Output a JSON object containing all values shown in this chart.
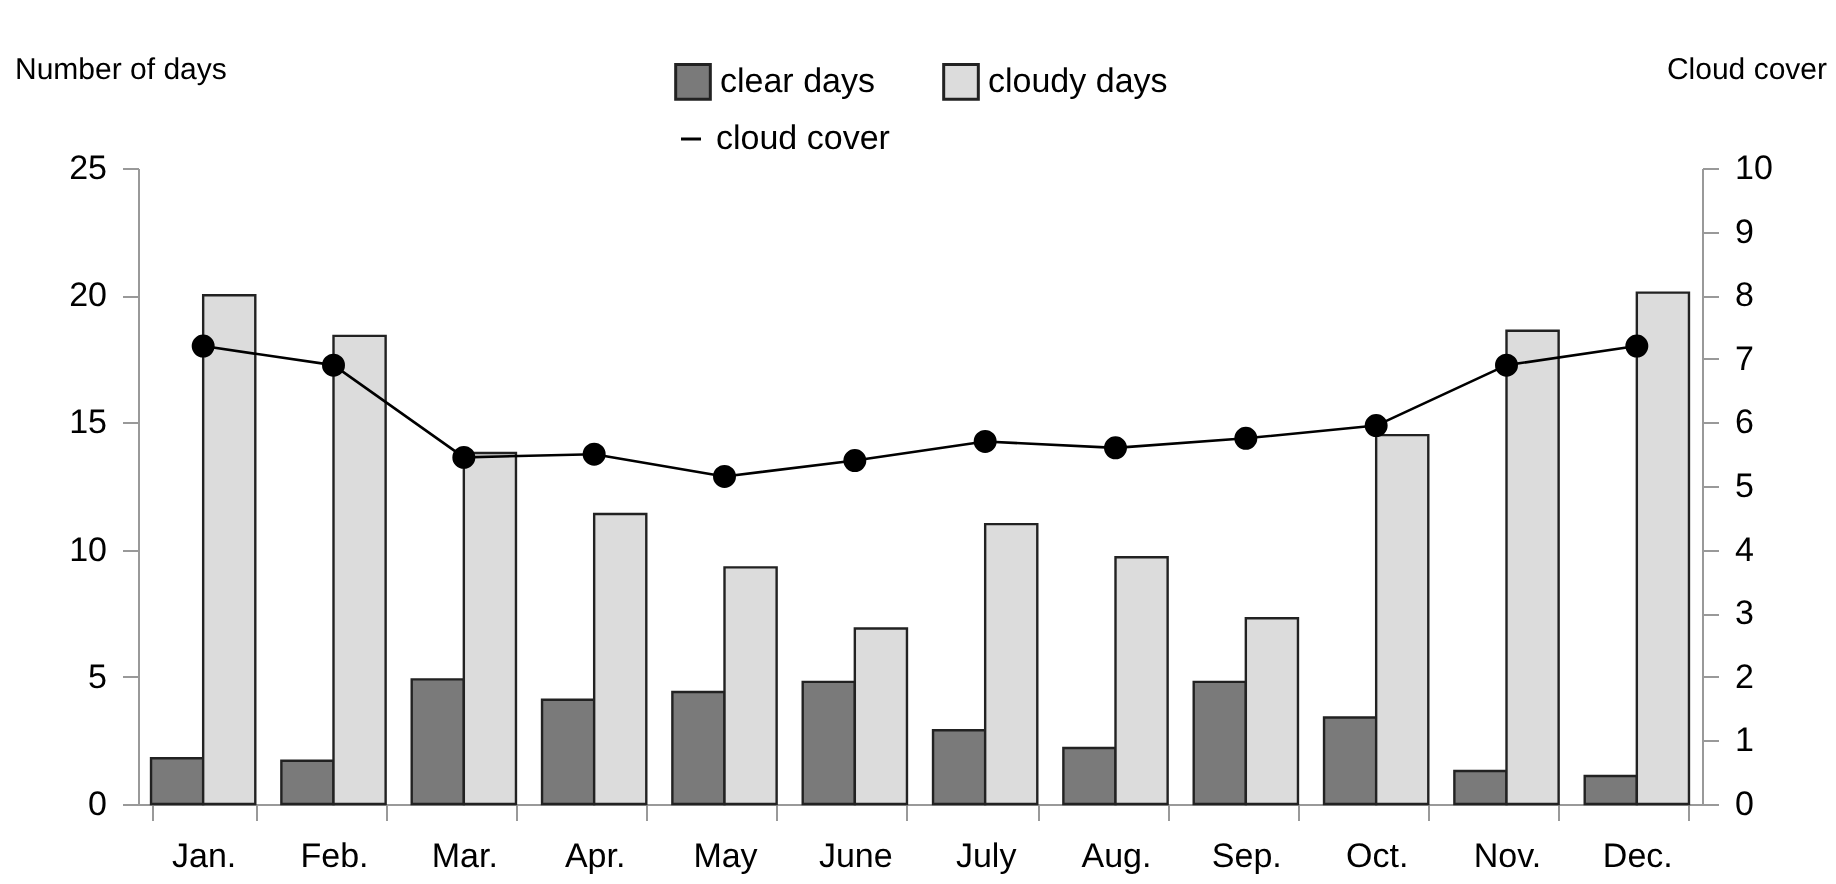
{
  "chart_data": {
    "type": "bar",
    "ylabel": "Number of days",
    "y2label": "Cloud cover",
    "categories": [
      "Jan.",
      "Feb.",
      "Mar.",
      "Apr.",
      "May",
      "June",
      "July",
      "Aug.",
      "Sep.",
      "Oct.",
      "Nov.",
      "Dec."
    ],
    "series": [
      {
        "name": "clear days",
        "color": "#7a7a7a",
        "values": [
          1.8,
          1.7,
          4.9,
          4.1,
          4.4,
          4.8,
          2.9,
          2.2,
          4.8,
          3.4,
          1.3,
          1.1
        ]
      },
      {
        "name": "cloudy days",
        "color": "#dcdcdc",
        "values": [
          20.0,
          18.4,
          13.8,
          11.4,
          9.3,
          6.9,
          11.0,
          9.7,
          7.3,
          14.5,
          18.6,
          20.1
        ]
      },
      {
        "name": "cloud cover",
        "type": "line",
        "axis": "y2",
        "color": "#000000",
        "marker": "circle",
        "values": [
          7.2,
          6.9,
          5.45,
          5.5,
          5.15,
          5.4,
          5.7,
          5.6,
          5.75,
          5.95,
          6.9,
          7.2
        ]
      }
    ],
    "ylim": [
      0,
      25
    ],
    "yticks": [
      0,
      5,
      10,
      15,
      20,
      25
    ],
    "y2lim": [
      0,
      10
    ],
    "y2ticks": [
      0,
      1,
      2,
      3,
      4,
      5,
      6,
      7,
      8,
      9,
      10
    ],
    "grid": false,
    "legend": "top"
  }
}
